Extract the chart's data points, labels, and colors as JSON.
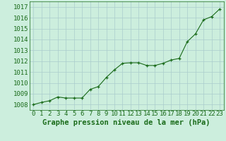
{
  "x": [
    0,
    1,
    2,
    3,
    4,
    5,
    6,
    7,
    8,
    9,
    10,
    11,
    12,
    13,
    14,
    15,
    16,
    17,
    18,
    19,
    20,
    21,
    22,
    23
  ],
  "y": [
    1008.0,
    1008.2,
    1008.35,
    1008.7,
    1008.6,
    1008.6,
    1008.6,
    1009.4,
    1009.65,
    1010.5,
    1011.2,
    1011.8,
    1011.85,
    1011.85,
    1011.6,
    1011.6,
    1011.8,
    1012.1,
    1012.25,
    1013.8,
    1014.5,
    1015.8,
    1016.1,
    1016.8
  ],
  "ylim": [
    1007.5,
    1017.5
  ],
  "yticks": [
    1008,
    1009,
    1010,
    1011,
    1012,
    1013,
    1014,
    1015,
    1016,
    1017
  ],
  "xticks": [
    0,
    1,
    2,
    3,
    4,
    5,
    6,
    7,
    8,
    9,
    10,
    11,
    12,
    13,
    14,
    15,
    16,
    17,
    18,
    19,
    20,
    21,
    22,
    23
  ],
  "line_color": "#1a6b1a",
  "marker_color": "#1a6b1a",
  "bg_color": "#cceedd",
  "grid_color": "#aacccc",
  "xlabel": "Graphe pression niveau de la mer (hPa)",
  "xlabel_fontsize": 7.5,
  "tick_fontsize": 6.5,
  "title": ""
}
